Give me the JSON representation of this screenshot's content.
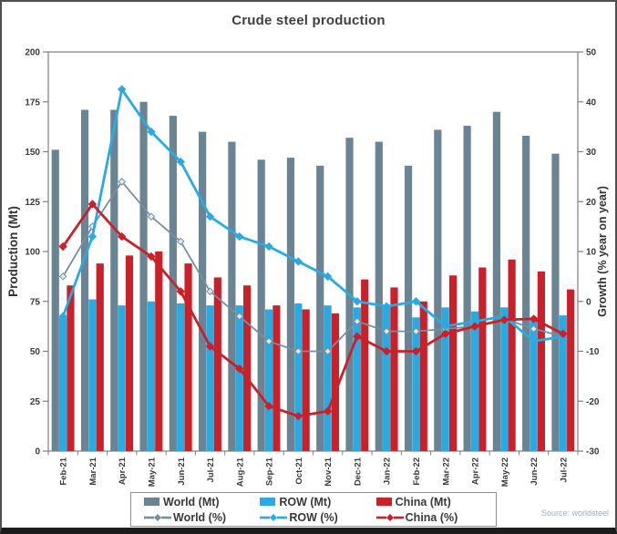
{
  "title": "Crude steel production",
  "source_note": "Source: worldsteel",
  "colors": {
    "world": "#6b8494",
    "row": "#29abe2",
    "china": "#c9202a",
    "axis_text": "#3a3a3a",
    "title_text": "#3f3f3f",
    "source_text": "#8fb4cc"
  },
  "chart_data": {
    "type": "bar+line",
    "title": "Crude steel production",
    "categories": [
      "Feb-21",
      "Mar-21",
      "Apr-21",
      "May-21",
      "Jun-21",
      "Jul-21",
      "Aug-21",
      "Sep-21",
      "Oct-21",
      "Nov-21",
      "Dec-21",
      "Jan-22",
      "Feb-22",
      "Mar-22",
      "Apr-22",
      "May-22",
      "Jun-22",
      "Jul-22"
    ],
    "left_axis": {
      "label": "Production (Mt)",
      "min": 0,
      "max": 200,
      "ticks": [
        0,
        25,
        50,
        75,
        100,
        125,
        150,
        175,
        200
      ]
    },
    "right_axis": {
      "label": "Growth (% year on year)",
      "min": -30,
      "max": 50,
      "ticks": [
        -30,
        -20,
        -10,
        0,
        10,
        20,
        30,
        40,
        50
      ]
    },
    "bar_series": [
      {
        "name": "World (Mt)",
        "color": "#6b8494",
        "values": [
          151,
          171,
          171,
          175,
          168,
          160,
          155,
          146,
          147,
          143,
          157,
          155,
          143,
          161,
          163,
          170,
          158,
          149
        ]
      },
      {
        "name": "ROW (Mt)",
        "color": "#29abe2",
        "values": [
          67,
          76,
          73,
          75,
          74,
          73,
          73,
          71,
          74,
          73,
          72,
          73,
          67,
          72,
          70,
          72,
          67,
          68
        ]
      },
      {
        "name": "China (Mt)",
        "color": "#c9202a",
        "values": [
          83,
          94,
          98,
          100,
          94,
          87,
          83,
          73,
          71,
          69,
          86,
          82,
          75,
          88,
          92,
          96,
          90,
          81
        ]
      }
    ],
    "line_series": [
      {
        "name": "World (%)",
        "color": "#76909f",
        "values": [
          5,
          15,
          24,
          17,
          12,
          2,
          -3,
          -8,
          -10,
          -10,
          -4,
          -6,
          -6,
          -5.5,
          -5,
          -3.5,
          -5.5,
          -7
        ]
      },
      {
        "name": "ROW (%)",
        "color": "#29abe2",
        "values": [
          -3,
          13,
          42.5,
          34,
          28,
          17,
          13,
          11,
          8,
          5,
          0,
          -1,
          0,
          -5,
          -4,
          -3,
          -8,
          -7
        ]
      },
      {
        "name": "China (%)",
        "color": "#c9202a",
        "values": [
          11,
          19.5,
          13,
          9,
          2,
          -9,
          -13.5,
          -21,
          -23,
          -22,
          -7,
          -10,
          -10,
          -6.5,
          -5,
          -3.7,
          -3.5,
          -6.5
        ]
      }
    ],
    "legend_position": "bottom",
    "grid": false
  },
  "legend": {
    "items": [
      {
        "label": "World (Mt)",
        "type": "bar",
        "color": "#6b8494"
      },
      {
        "label": "ROW (Mt)",
        "type": "bar",
        "color": "#29abe2"
      },
      {
        "label": "China (Mt)",
        "type": "bar",
        "color": "#c9202a"
      },
      {
        "label": "World (%)",
        "type": "line",
        "color": "#76909f"
      },
      {
        "label": "ROW (%)",
        "type": "line",
        "color": "#29abe2"
      },
      {
        "label": "China (%)",
        "type": "line",
        "color": "#c9202a"
      }
    ]
  }
}
